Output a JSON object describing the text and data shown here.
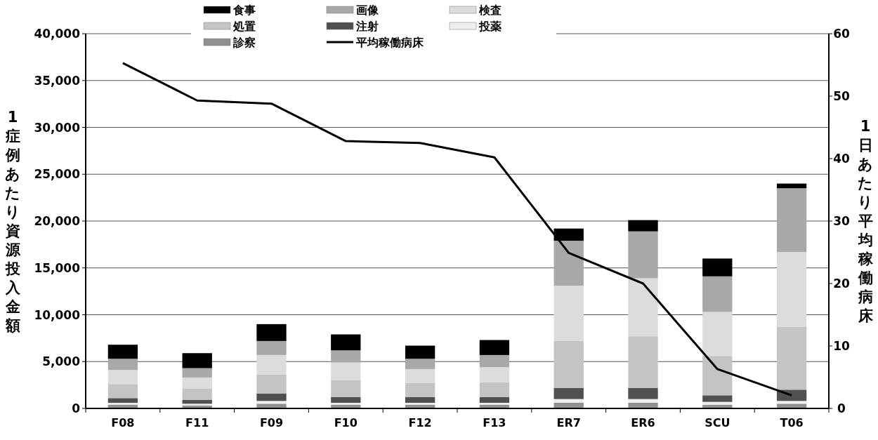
{
  "chart_data": {
    "type": "bar",
    "stacked": true,
    "categories": [
      "F08",
      "F11",
      "F09",
      "F10",
      "F12",
      "F13",
      "ER7",
      "ER6",
      "SCU",
      "T06"
    ],
    "ylabel": "1症例あたり資源投入金額",
    "y2label": "1日あたり平均稼働病床",
    "ylim": [
      0,
      40000
    ],
    "yticks": [
      {
        "value": 0,
        "label": "0"
      },
      {
        "value": 5000,
        "label": "5,000"
      },
      {
        "value": 10000,
        "label": "10,000"
      },
      {
        "value": 15000,
        "label": "15,000"
      },
      {
        "value": 20000,
        "label": "20,000"
      },
      {
        "value": 25000,
        "label": "25,000"
      },
      {
        "value": 30000,
        "label": "30,000"
      },
      {
        "value": 35000,
        "label": "35,000"
      },
      {
        "value": 40000,
        "label": "40,000"
      }
    ],
    "y2lim": [
      0,
      60
    ],
    "y2ticks": [
      0,
      10,
      20,
      30,
      40,
      50,
      60
    ],
    "grid": "y",
    "legend": "top",
    "series": [
      {
        "name": "診察",
        "color": "#909090",
        "values": [
          400,
          300,
          500,
          400,
          400,
          400,
          600,
          600,
          400,
          500
        ]
      },
      {
        "name": "投薬",
        "color": "#eeeeee",
        "values": [
          200,
          200,
          300,
          200,
          200,
          200,
          400,
          400,
          300,
          300
        ]
      },
      {
        "name": "注射",
        "color": "#505050",
        "values": [
          500,
          400,
          800,
          600,
          600,
          600,
          1200,
          1200,
          700,
          1200
        ]
      },
      {
        "name": "処置",
        "color": "#c4c4c4",
        "values": [
          1500,
          1200,
          2000,
          1800,
          1500,
          1600,
          5000,
          5500,
          4200,
          6700
        ]
      },
      {
        "name": "検査",
        "color": "#dcdcdc",
        "values": [
          1500,
          1200,
          2100,
          1900,
          1500,
          1600,
          5900,
          6200,
          4700,
          8000
        ]
      },
      {
        "name": "画像",
        "color": "#a8a8a8",
        "values": [
          1200,
          1000,
          1500,
          1300,
          1100,
          1300,
          4800,
          5000,
          3800,
          6800
        ]
      },
      {
        "name": "食事",
        "color": "#000000",
        "values": [
          1500,
          1600,
          1800,
          1700,
          1400,
          1600,
          1300,
          1200,
          1900,
          500
        ]
      },
      {
        "name": "平均稼働病床",
        "type": "line",
        "axis": "y2",
        "color": "#000000",
        "line_style": "solid",
        "marker": "none",
        "values": [
          55.3,
          49.3,
          48.8,
          42.8,
          42.5,
          40.2,
          24.9,
          20.0,
          6.3,
          2.1
        ]
      }
    ]
  }
}
